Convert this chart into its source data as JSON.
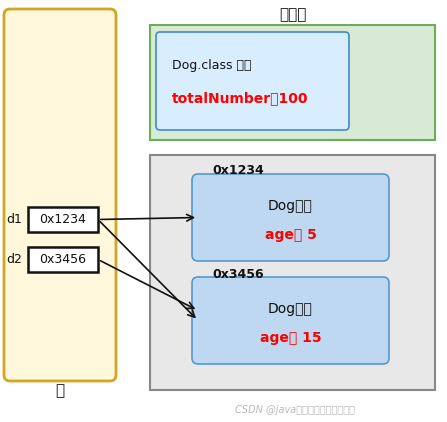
{
  "title_fangfa": "方法区",
  "label_stack": "栈",
  "label_d1": "d1",
  "label_d2": "d2",
  "label_d1_val": "0x1234",
  "label_d2_val": "0x3456",
  "dog_class_line1": "Dog.class 信息",
  "dog_class_line2": "totalNumber：100",
  "obj1_addr": "0x1234",
  "obj1_line1": "Dog对象",
  "obj1_line2": "age： 5",
  "obj2_addr": "0x3456",
  "obj2_line1": "Dog对象",
  "obj2_line2": "age： 15",
  "watermark": "CSDN @java前后端全套视频免费送",
  "color_stack_bg": "#FFF8DC",
  "color_stack_border": "#D4A520",
  "color_fangfa_bg": "#D6EAD4",
  "color_fangfa_border": "#6DAD5A",
  "color_heap_bg": "#E8E8E8",
  "color_heap_border": "#888888",
  "color_dogclass_box_bg": "#D8EEFF",
  "color_dogclass_box_border": "#4488CC",
  "color_dogobj_bg": "#BDD8F0",
  "color_dogobj_border": "#5599CC",
  "color_red": "#FF0000",
  "color_black": "#111111",
  "color_wm": "#BBBBBB",
  "color_stack_cell_bg": "#FFFFFF",
  "color_stack_cell_border": "#111111"
}
